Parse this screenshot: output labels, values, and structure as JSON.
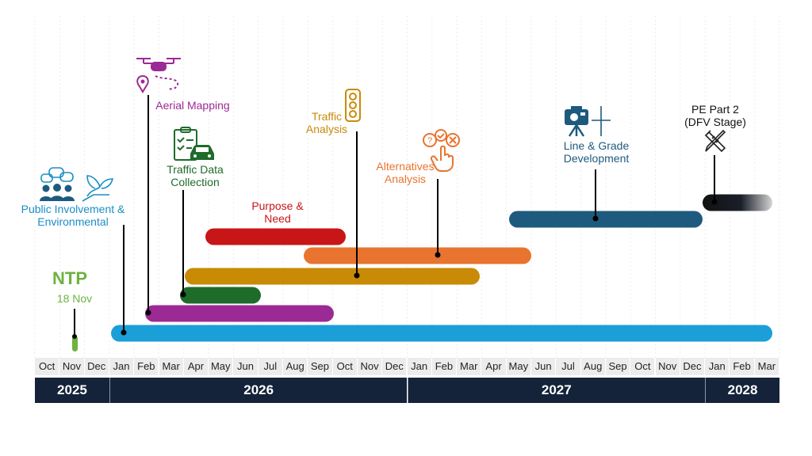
{
  "timeline": {
    "months": [
      "Oct",
      "Nov",
      "Dec",
      "Jan",
      "Feb",
      "Mar",
      "Apr",
      "May",
      "Jun",
      "Jul",
      "Aug",
      "Sep",
      "Oct",
      "Nov",
      "Dec",
      "Jan",
      "Feb",
      "Mar",
      "Apr",
      "May",
      "Jun",
      "Jul",
      "Aug",
      "Sep",
      "Oct",
      "Nov",
      "Dec",
      "Jan",
      "Feb",
      "Mar"
    ],
    "years": [
      {
        "label": "2025",
        "months": 3
      },
      {
        "label": "2026",
        "months": 12
      },
      {
        "label": "2027",
        "months": 12
      },
      {
        "label": "2028",
        "months": 3
      }
    ]
  },
  "milestone": {
    "title": "NTP",
    "date": "18 Nov",
    "color": "#6db33f"
  },
  "tasks": [
    {
      "id": "public-involvement",
      "label": "Public Involvement &\nEnvironmental",
      "color": "#1b9fd8",
      "label_color": "#1b8ec4",
      "icon": "people-chat-icon",
      "start": "Jan 2026",
      "end": "Mar 2028"
    },
    {
      "id": "aerial-mapping",
      "label": "Aerial Mapping",
      "color": "#9c2a94",
      "label_color": "#9c2a94",
      "icon": "drone-icon",
      "start": "Feb 2026",
      "end": "Sep 2026"
    },
    {
      "id": "traffic-data-collection",
      "label": "Traffic Data\nCollection",
      "color": "#1f6b2a",
      "label_color": "#1f6b2a",
      "icon": "clipboard-car-icon",
      "start": "Mar 2026",
      "end": "Jun 2026"
    },
    {
      "id": "purpose-need",
      "label": "Purpose &\nNeed",
      "color": "#c81517",
      "label_color": "#c81517",
      "icon": "",
      "start": "Apr 2026",
      "end": "Sep 2026"
    },
    {
      "id": "traffic-analysis",
      "label": "Traffic\nAnalysis",
      "color": "#c98a06",
      "label_color": "#c98a06",
      "icon": "traffic-light-icon",
      "start": "Mar 2026",
      "end": "Feb 2027"
    },
    {
      "id": "alternatives-analysis",
      "label": "Alternatives\nAnalysis",
      "color": "#e8742f",
      "label_color": "#e8742f",
      "icon": "decision-hand-icon",
      "start": "Jul 2026",
      "end": "May 2027"
    },
    {
      "id": "line-grade",
      "label": "Line & Grade\nDevelopment",
      "color": "#1e5a7e",
      "label_color": "#1e5a7e",
      "icon": "survey-camera-icon",
      "start": "May 2027",
      "end": "Dec 2027"
    },
    {
      "id": "pe-part-2",
      "label": "PE Part 2\n(DFV Stage)",
      "color": "#111111",
      "label_color": "#111111",
      "icon": "design-tools-icon",
      "start": "Jan 2028",
      "end": "Feb 2028"
    }
  ]
}
